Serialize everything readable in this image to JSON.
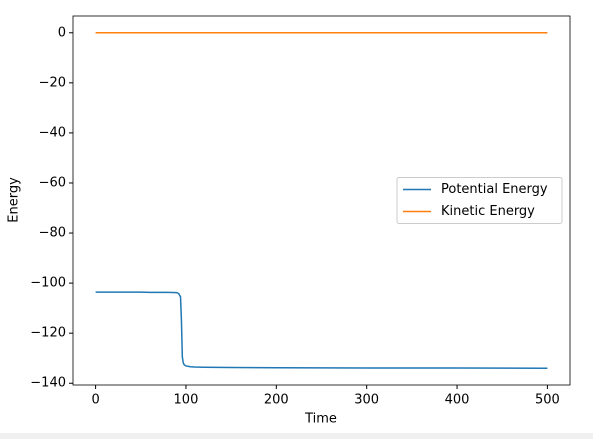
{
  "chart_data": {
    "type": "line",
    "x_label": "Time",
    "y_label": "Energy",
    "x": [
      0,
      10,
      20,
      30,
      40,
      50,
      60,
      70,
      80,
      90,
      92,
      94,
      95,
      96,
      97,
      98,
      100,
      105,
      110,
      120,
      150,
      200,
      300,
      400,
      500
    ],
    "series": [
      {
        "name": "Potential Energy",
        "color": "#1f77b4",
        "values": [
          -103.6,
          -103.6,
          -103.6,
          -103.6,
          -103.6,
          -103.6,
          -103.7,
          -103.7,
          -103.7,
          -103.8,
          -104.2,
          -105.5,
          -115,
          -129.5,
          -131.8,
          -132.6,
          -133.1,
          -133.4,
          -133.5,
          -133.6,
          -133.7,
          -133.8,
          -133.9,
          -133.9,
          -134.0
        ]
      },
      {
        "name": "Kinetic Energy",
        "color": "#ff7f0e",
        "values": [
          0,
          0,
          0,
          0,
          0,
          0,
          0,
          0,
          0,
          0,
          0,
          0,
          0,
          0,
          0,
          0,
          0,
          0,
          0,
          0,
          0,
          0,
          0,
          0,
          0
        ]
      }
    ],
    "xlim": [
      -25,
      525
    ],
    "ylim": [
      -140.7,
      6.7
    ],
    "xticks": [
      0,
      100,
      200,
      300,
      400,
      500
    ],
    "yticks": [
      0,
      {
        "value": -20,
        "label": "−20"
      },
      {
        "value": -40,
        "label": "−40"
      },
      {
        "value": -60,
        "label": "−60"
      },
      {
        "value": -80,
        "label": "−80"
      },
      {
        "value": -100,
        "label": "−100"
      },
      {
        "value": -120,
        "label": "−120"
      },
      {
        "value": -140,
        "label": "−140"
      }
    ],
    "legend": "center right"
  }
}
